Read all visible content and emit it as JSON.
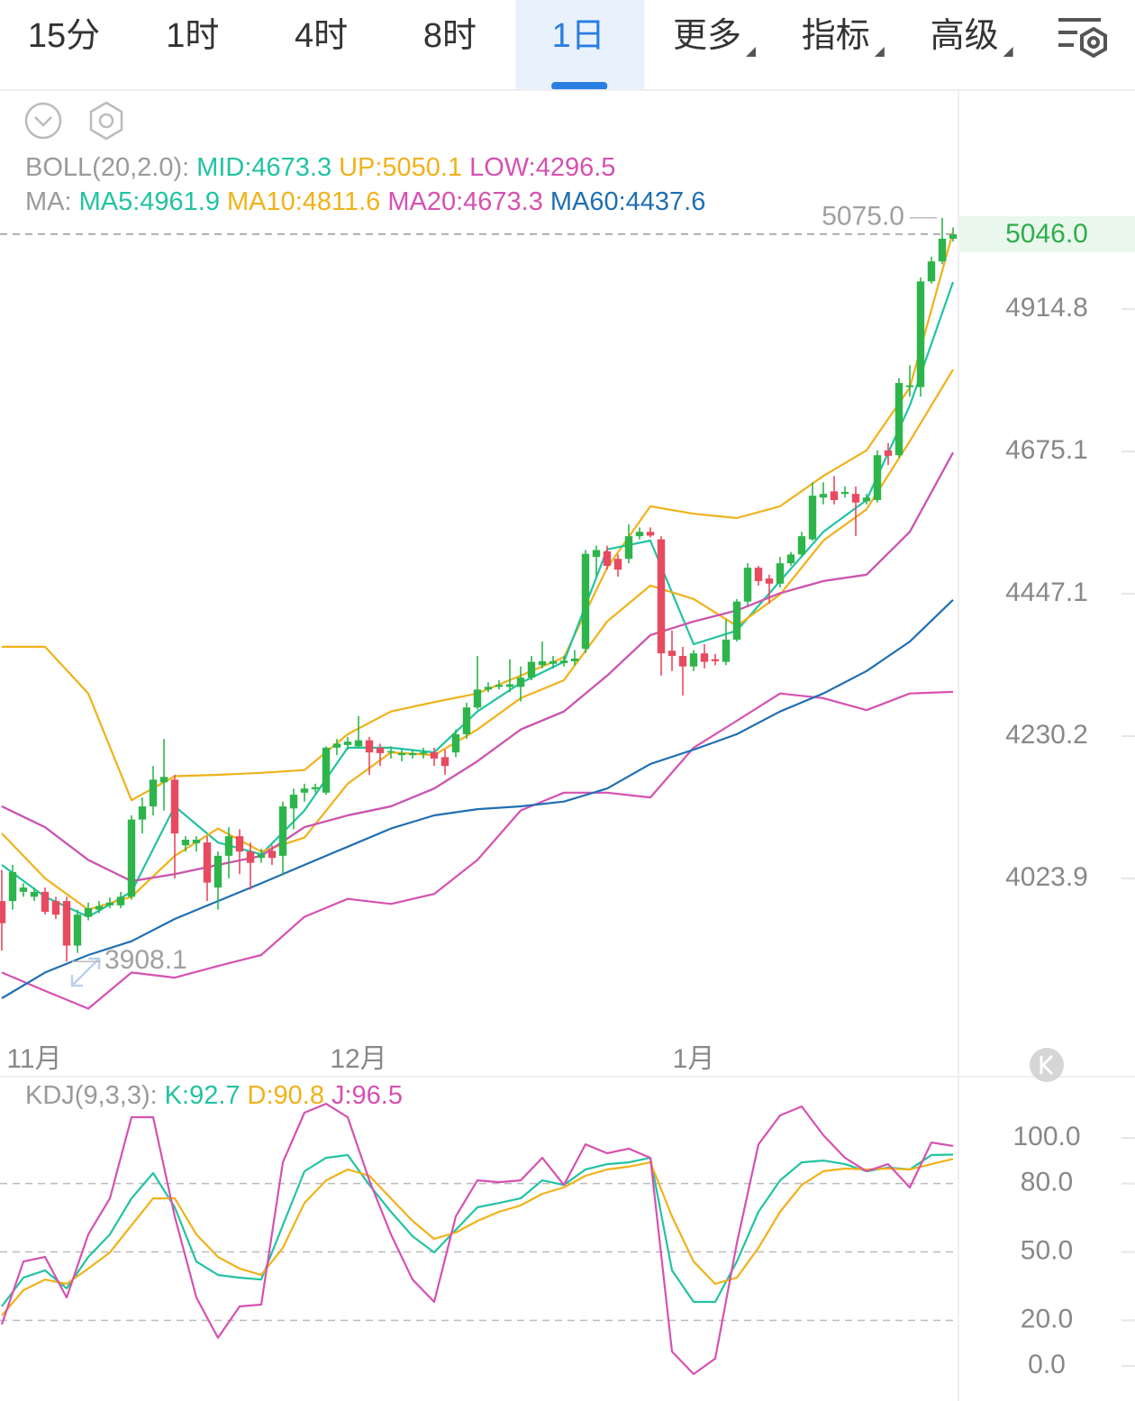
{
  "header": {
    "tabs": [
      {
        "label": "15分"
      },
      {
        "label": "1时"
      },
      {
        "label": "4时"
      },
      {
        "label": "8时"
      },
      {
        "label": "1日",
        "selected": true
      },
      {
        "label": "更多",
        "dropdown": true
      },
      {
        "label": "指标",
        "dropdown": true
      },
      {
        "label": "高级",
        "dropdown": true
      }
    ]
  },
  "chart_data": [
    {
      "type": "candlestick",
      "categories": [
        null,
        null,
        null,
        "11月",
        null,
        null,
        null,
        null,
        null,
        null,
        null,
        null,
        null,
        null,
        null,
        null,
        null,
        null,
        null,
        null,
        null,
        null,
        null,
        null,
        null,
        null,
        null,
        null,
        null,
        null,
        null,
        null,
        null,
        "12月",
        null,
        null,
        null,
        null,
        null,
        null,
        null,
        null,
        null,
        null,
        null,
        null,
        null,
        null,
        null,
        null,
        null,
        null,
        null,
        null,
        null,
        null,
        null,
        null,
        null,
        null,
        null,
        null,
        null,
        null,
        "1月",
        null,
        null,
        null,
        null,
        null,
        null,
        null,
        null,
        null,
        null,
        null,
        null,
        null,
        null,
        null,
        null,
        null,
        null,
        null,
        null,
        null,
        null,
        null,
        null
      ],
      "open": [
        3992,
        3992,
        4005,
        3998,
        4005,
        3992,
        3992,
        3930,
        3970,
        3980,
        3986,
        3986,
        3998,
        4108,
        4127,
        4162,
        4166,
        4071,
        4074,
        4075,
        4011,
        4056,
        4084,
        4062,
        4053,
        4063,
        4056,
        4124,
        4147,
        4152,
        4147,
        4213,
        4217,
        4215,
        4224,
        4213,
        4206,
        4202,
        4202,
        4204,
        4206,
        4199,
        4206,
        4233,
        4273,
        4300,
        4304,
        4304,
        4304,
        4318,
        4337,
        4339,
        4340,
        4343,
        4362,
        4505,
        4514,
        4502,
        4502,
        4538,
        4545,
        4533,
        4359,
        4351,
        4335,
        4355,
        4346,
        4342,
        4376,
        4435,
        4488,
        4471,
        4463,
        4495,
        4509,
        4533,
        4600,
        4610,
        4606,
        4606,
        4594,
        4596,
        4677,
        4669,
        4782,
        4782,
        4963,
        4998,
        5038
      ],
      "high": [
        4036,
        4043,
        4017,
        4011,
        4011,
        3998,
        3998,
        3980,
        3990,
        3992,
        3997,
        4005,
        4114,
        4140,
        4186,
        4226,
        4173,
        4084,
        4084,
        4084,
        4062,
        4097,
        4094,
        4075,
        4066,
        4071,
        4134,
        4153,
        4160,
        4160,
        4215,
        4226,
        4229,
        4260,
        4229,
        4219,
        4215,
        4210,
        4210,
        4213,
        4213,
        4210,
        4240,
        4280,
        4351,
        4311,
        4314,
        4346,
        4335,
        4351,
        4373,
        4351,
        4351,
        4360,
        4516,
        4523,
        4523,
        4509,
        4557,
        4552,
        4552,
        4538,
        4390,
        4365,
        4360,
        4369,
        4354,
        4407,
        4439,
        4495,
        4491,
        4477,
        4505,
        4513,
        4545,
        4625,
        4625,
        4635,
        4618,
        4618,
        4606,
        4677,
        4689,
        4797,
        4819,
        4970,
        5006,
        5075,
        5058
      ],
      "low": [
        3923,
        3980,
        3998,
        3992,
        3973,
        3967,
        3908.1,
        3920,
        3965,
        3975,
        3982,
        3982,
        3994,
        4088,
        4114,
        4121,
        4024,
        4062,
        4062,
        3992,
        3980,
        4024,
        4030,
        4008,
        4046,
        4043,
        4028,
        4094,
        4134,
        4147,
        4144,
        4202,
        4210,
        4213,
        4173,
        4186,
        4197,
        4193,
        4197,
        4197,
        4186,
        4173,
        4199,
        4226,
        4270,
        4296,
        4300,
        4296,
        4282,
        4314,
        4332,
        4332,
        4335,
        4337,
        4355,
        4474,
        4485,
        4474,
        4495,
        4533,
        4536,
        4321,
        4328,
        4291,
        4328,
        4332,
        4337,
        4337,
        4373,
        4429,
        4460,
        4432,
        4457,
        4491,
        4505,
        4531,
        4589,
        4589,
        4600,
        4538,
        4589,
        4592,
        4653,
        4665,
        4766,
        4766,
        4959,
        4993,
        5033
      ],
      "close": [
        3961,
        4033,
        4011,
        4005,
        3977,
        3973,
        3930,
        3973,
        3982,
        3985,
        3990,
        3998,
        4108,
        4127,
        4166,
        4170,
        4088,
        4079,
        4079,
        4018,
        4056,
        4084,
        4062,
        4046,
        4058,
        4053,
        4127,
        4144,
        4153,
        4155,
        4213,
        4219,
        4222,
        4224,
        4206,
        4205,
        4208,
        4205,
        4205,
        4206,
        4197,
        4186,
        4233,
        4273,
        4300,
        4304,
        4307,
        4308,
        4318,
        4342,
        4343,
        4343,
        4344,
        4347,
        4510,
        4516,
        4491,
        4485,
        4538,
        4545,
        4539,
        4355,
        4351,
        4335,
        4355,
        4342,
        4343,
        4376,
        4435,
        4488,
        4467,
        4463,
        4495,
        4509,
        4538,
        4603,
        4606,
        4596,
        4609,
        4592,
        4600,
        4669,
        4668,
        4789,
        4785,
        4963,
        4998,
        5038,
        5046
      ],
      "up_color": "#2db54b",
      "down_color": "#e84a5f",
      "yscale": "log",
      "ylim": [
        3801,
        5308
      ],
      "yticks": [
        4023.9,
        4230.2,
        4447.1,
        4675.1,
        4914.8
      ],
      "grid": false,
      "max_label": "5075.0",
      "min_label": "3908.1",
      "last_label": "5046.0",
      "indicators": [
        {
          "title": "BOLL(20,2.0):",
          "x": [
            0,
            4,
            8,
            12,
            16,
            20,
            24,
            28,
            32,
            36,
            40,
            44,
            48,
            52,
            56,
            60,
            64,
            68,
            72,
            76,
            80,
            84,
            88
          ],
          "series": [
            {
              "name": "MID:4673.3",
              "color": "#22c3a2",
              "values": [
                4127,
                4097,
                4050,
                4020,
                4030,
                4043,
                4056,
                4097,
                4114,
                4127,
                4153,
                4193,
                4240,
                4267,
                4321,
                4383,
                4404,
                4421,
                4448,
                4467,
                4477,
                4545,
                4673.3
              ]
            },
            {
              "name": "UP:5050.1",
              "color": "#f0b21a",
              "values": [
                4365,
                4365,
                4294,
                4136,
                4171,
                4173,
                4176,
                4180,
                4233,
                4267,
                4281,
                4294,
                4321,
                4349,
                4488,
                4586,
                4574,
                4567,
                4586,
                4635,
                4677,
                4781,
                5050.1
              ]
            },
            {
              "name": "LOW:4296.5",
              "color": "#d651b1",
              "values": [
                3893,
                3868,
                3844,
                3893,
                3886,
                3902,
                3917,
                3970,
                3995,
                3988,
                4002,
                4050,
                4121,
                4147,
                4147,
                4140,
                4213,
                4253,
                4294,
                4287,
                4269,
                4294,
                4296.5
              ]
            }
          ]
        },
        {
          "title": "MA:",
          "x": [
            0,
            4,
            8,
            12,
            16,
            20,
            24,
            28,
            32,
            36,
            40,
            44,
            48,
            52,
            56,
            60,
            64,
            68,
            72,
            76,
            80,
            84,
            88
          ],
          "series": [
            {
              "name": "MA5:4961.9",
              "color": "#22c3a2",
              "values": [
                4043,
                3998,
                3970,
                4005,
                4127,
                4075,
                4058,
                4121,
                4213,
                4213,
                4206,
                4267,
                4310,
                4342,
                4517,
                4531,
                4369,
                4390,
                4467,
                4545,
                4596,
                4751,
                4961.9
              ]
            },
            {
              "name": "MA10:4811.6",
              "color": "#f0b21a",
              "values": [
                4088,
                4024,
                3980,
                3998,
                4056,
                4095,
                4062,
                4082,
                4160,
                4206,
                4202,
                4240,
                4287,
                4314,
                4404,
                4460,
                4439,
                4397,
                4446,
                4531,
                4581,
                4692,
                4811.6
              ]
            },
            {
              "name": "MA20:4673.3",
              "color": "#d651b1",
              "values": [
                4127,
                4097,
                4050,
                4020,
                4030,
                4043,
                4056,
                4097,
                4114,
                4127,
                4153,
                4193,
                4240,
                4267,
                4321,
                4383,
                4404,
                4421,
                4448,
                4467,
                4477,
                4545,
                4673.3
              ]
            },
            {
              "name": "MA60:4437.6",
              "color": "#1f6fb2",
              "values": [
                3858,
                3893,
                3917,
                3936,
                3967,
                3992,
                4017,
                4043,
                4069,
                4095,
                4114,
                4123,
                4127,
                4134,
                4153,
                4189,
                4210,
                4233,
                4267,
                4294,
                4328,
                4373,
                4437.6
              ]
            }
          ]
        }
      ]
    },
    {
      "type": "line",
      "title": "KDJ(9,3,3):",
      "x": [
        0,
        2,
        4,
        6,
        8,
        10,
        12,
        14,
        16,
        18,
        20,
        22,
        24,
        26,
        28,
        30,
        32,
        34,
        36,
        38,
        40,
        42,
        44,
        46,
        48,
        50,
        52,
        54,
        56,
        58,
        60,
        62,
        64,
        66,
        68,
        70,
        72,
        74,
        76,
        78,
        80,
        82,
        84,
        86,
        88
      ],
      "ylim": [
        -15.4,
        126.9
      ],
      "yticks": [
        {
          "value": 100,
          "label": "100.0"
        },
        {
          "value": 80,
          "label": "80.0",
          "grid": true
        },
        {
          "value": 50,
          "label": "50.0",
          "grid": true
        },
        {
          "value": 20,
          "label": "20.0",
          "grid": true
        },
        {
          "value": 0,
          "label": "0.0"
        }
      ],
      "series": [
        {
          "name": "K:92.7",
          "color": "#22c3a2",
          "values": [
            26.1,
            38.7,
            41.9,
            34.0,
            47.8,
            57.7,
            73.5,
            84.6,
            69.6,
            45.8,
            39.9,
            38.7,
            37.9,
            61.7,
            85.4,
            91.3,
            92.5,
            79.4,
            67.6,
            56.9,
            49.8,
            59.7,
            69.6,
            71.5,
            73.5,
            81.4,
            79.4,
            86.2,
            88.5,
            89.3,
            91.3,
            41.9,
            28.1,
            28.1,
            45.8,
            67.6,
            81.4,
            89.3,
            90.1,
            88.5,
            85.4,
            87.0,
            86.2,
            92.5,
            92.7
          ]
        },
        {
          "name": "D:90.8",
          "color": "#f0b21a",
          "values": [
            22.1,
            33.2,
            37.9,
            36.0,
            42.7,
            49.8,
            61.7,
            73.5,
            73.5,
            57.7,
            47.8,
            42.7,
            39.9,
            51.8,
            71.5,
            81.4,
            86.2,
            83.4,
            73.5,
            63.6,
            55.7,
            58.5,
            63.6,
            67.6,
            70.4,
            75.5,
            78.3,
            83.4,
            86.2,
            87.4,
            89.3,
            65.6,
            45.8,
            36.0,
            38.7,
            51.8,
            67.6,
            79.4,
            85.4,
            86.6,
            86.2,
            86.6,
            86.2,
            88.5,
            90.8
          ]
        },
        {
          "name": "J:96.5",
          "color": "#d651b1",
          "values": [
            18.2,
            45.8,
            47.8,
            30.0,
            57.7,
            73.5,
            109.1,
            109.1,
            65.6,
            30.0,
            12.3,
            26.1,
            26.9,
            89.3,
            111.1,
            115.0,
            109.1,
            81.4,
            57.7,
            37.9,
            28.1,
            65.6,
            81.4,
            80.6,
            81.4,
            91.3,
            79.4,
            97.2,
            93.3,
            95.3,
            91.3,
            6.3,
            -3.6,
            3.2,
            53.8,
            97.2,
            109.9,
            113.8,
            101.2,
            91.3,
            85.4,
            88.5,
            78.3,
            98.0,
            96.5
          ]
        }
      ]
    }
  ]
}
